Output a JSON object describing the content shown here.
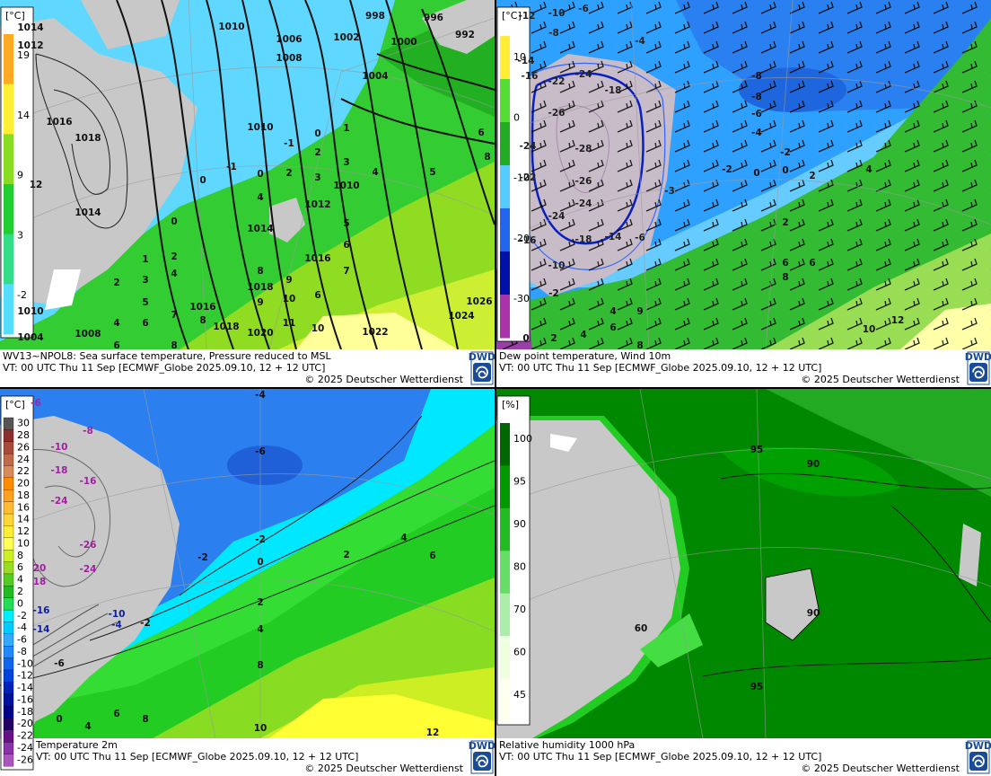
{
  "panels": [
    {
      "unit": "[°C]",
      "legend": [
        "19",
        "14",
        "9",
        "3",
        "-2"
      ],
      "caption": [
        "WV13~NPOL8: Sea surface temperature,  Pressure reduced to MSL",
        "VT: 00 UTC Thu  11 Sep [ECMWF_Globe 2025.09.10, 12 + 12 UTC]",
        "© 2025 Deutscher Wetterdienst"
      ],
      "logo": "DWD",
      "labels": [
        "1010",
        "1006",
        "1002",
        "998",
        "996",
        "992",
        "1000",
        "1008",
        "1004",
        "1014",
        "1012",
        "1016",
        "1018",
        "12",
        "1014",
        "1010",
        "1012",
        "1014",
        "1016",
        "1018",
        "1016",
        "1018",
        "1020",
        "1022",
        "1024",
        "1026",
        "1010",
        "1008",
        "1004",
        "0",
        "1",
        "2",
        "3",
        "4",
        "5",
        "6",
        "8",
        "-1",
        "-1",
        "0",
        "0",
        "2",
        "3",
        "1010",
        "4",
        "0",
        "5",
        "6",
        "7",
        "1",
        "2",
        "2",
        "3",
        "4",
        "8",
        "9",
        "6",
        "10",
        "9",
        "5",
        "6",
        "7",
        "8",
        "4",
        "10",
        "11",
        "6",
        "8"
      ]
    },
    {
      "unit": "[°C]",
      "legend": [
        "10",
        "0",
        "-10",
        "-20",
        "-30"
      ],
      "caption": [
        "Dew point temperature, Wind 10m",
        "VT: 00 UTC Thu  11 Sep [ECMWF_Globe 2025.09.10,  12 + 12 UTC]",
        "© 2025 Deutscher Wetterdienst"
      ],
      "logo": "DWD",
      "labels": [
        "-12",
        "-10",
        "-8",
        "-6",
        "-4",
        "-14",
        "-16",
        "-22",
        "-24",
        "-18",
        "-26",
        "-24",
        "-28",
        "-22",
        "-26",
        "-24",
        "-24",
        "-18",
        "-14",
        "-6",
        "-16",
        "-10",
        "-3",
        "-2",
        "-8",
        "-8",
        "-6",
        "-4",
        "-2",
        "-2",
        "0",
        "0",
        "2",
        "4",
        "2",
        "6",
        "6",
        "8",
        "4",
        "9",
        "6",
        "8",
        "4",
        "2",
        "0",
        "10",
        "12"
      ]
    },
    {
      "unit": "[°C]",
      "legend": [
        "30",
        "28",
        "26",
        "24",
        "22",
        "20",
        "18",
        "16",
        "14",
        "12",
        "10",
        "8",
        "6",
        "4",
        "2",
        "0",
        "-2",
        "-4",
        "-6",
        "-8",
        "-10",
        "-12",
        "-14",
        "-16",
        "-18",
        "-20",
        "-22",
        "-24",
        "-26"
      ],
      "caption": [
        "Temperature 2m",
        "VT: 00 UTC Thu  11 Sep [ECMWF_Globe 2025.09.10, 12 + 12 UTC]",
        "© 2025 Deutscher Wetterdienst"
      ],
      "logo": "DWD",
      "labels": [
        "-4",
        "-8",
        "-6",
        "-10",
        "-18",
        "-16",
        "-24",
        "-26",
        "-24",
        "-6",
        "-2",
        "0",
        "2",
        "4",
        "6",
        "-2",
        "2",
        "4",
        "-2",
        "-10",
        "-4",
        "20",
        "18",
        "-16",
        "-14",
        "-6",
        "8",
        "6",
        "8",
        "4",
        "0",
        "10",
        "12"
      ]
    },
    {
      "unit": "[%]",
      "legend": [
        "100",
        "95",
        "90",
        "80",
        "70",
        "60",
        "45"
      ],
      "caption": [
        "Relative humidity 1000 hPa",
        "VT: 00 UTC Thu  11 Sep [ECMWF_Globe 2025.09.10, 12 + 12 UTC]",
        "© 2025 Deutscher Wetterdienst"
      ],
      "logo": "DWD",
      "labels": [
        "95",
        "90",
        "90",
        "95",
        "60"
      ]
    }
  ]
}
